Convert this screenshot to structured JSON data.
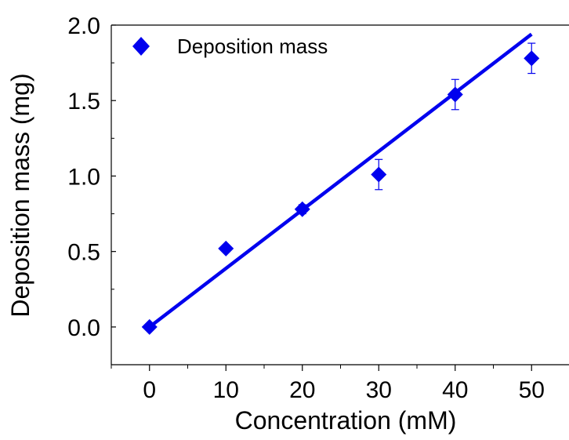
{
  "chart_data": {
    "type": "scatter",
    "title": "",
    "xlabel": "Concentration (mM)",
    "ylabel": "Deposition mass (mg)",
    "xlim": [
      -5,
      55
    ],
    "ylim": [
      -0.25,
      2.0
    ],
    "xticks": [
      0,
      10,
      20,
      30,
      40,
      50
    ],
    "xtick_labels": [
      "0",
      "10",
      "20",
      "30",
      "40",
      "50"
    ],
    "yticks": [
      0.0,
      0.5,
      1.0,
      1.5,
      2.0
    ],
    "ytick_labels": [
      "0.0",
      "0.5",
      "1.0",
      "1.5",
      "2.0"
    ],
    "grid": false,
    "legend": {
      "position": "top-left",
      "entries": [
        "Deposition mass"
      ]
    },
    "colors": {
      "series": "#0000ee",
      "axes": "#000000"
    },
    "series": [
      {
        "name": "Deposition mass",
        "marker": "diamond",
        "x": [
          0,
          10,
          20,
          30,
          40,
          50
        ],
        "y": [
          0.0,
          0.52,
          0.78,
          1.01,
          1.54,
          1.78
        ],
        "yerr": [
          0.0,
          0.0,
          0.03,
          0.1,
          0.1,
          0.1
        ]
      }
    ],
    "fit_line": {
      "x": [
        0,
        50
      ],
      "y": [
        0.0,
        1.94
      ]
    }
  }
}
